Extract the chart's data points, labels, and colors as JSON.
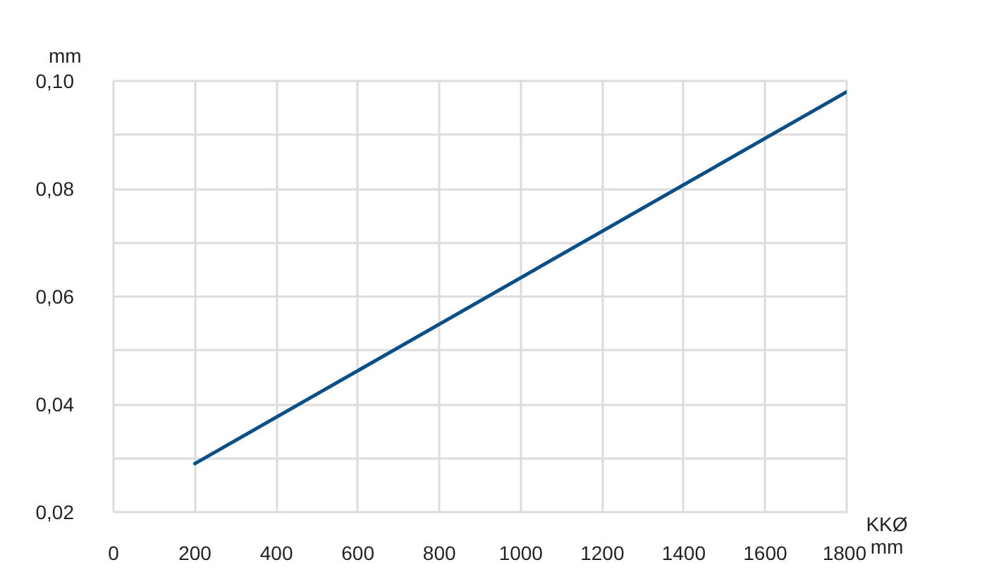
{
  "chart_data": {
    "type": "line",
    "xlabel": "KKØ\nmm",
    "ylabel": "mm",
    "x": [
      200,
      1800
    ],
    "series": [
      {
        "color": "#0b4f88",
        "values": [
          0.029,
          0.098
        ]
      }
    ],
    "xlim": [
      0,
      1800
    ],
    "ylim": [
      0.02,
      0.1
    ],
    "xticks": [
      0,
      200,
      400,
      600,
      800,
      1000,
      1200,
      1400,
      1600,
      1800
    ],
    "yticks": [
      {
        "value": 0.02,
        "label": "0,02"
      },
      {
        "value": 0.03,
        "label": null
      },
      {
        "value": 0.04,
        "label": "0,04"
      },
      {
        "value": 0.05,
        "label": null
      },
      {
        "value": 0.06,
        "label": "0,06"
      },
      {
        "value": 0.07,
        "label": null
      },
      {
        "value": 0.08,
        "label": "0,08"
      },
      {
        "value": 0.09,
        "label": null
      },
      {
        "value": 0.1,
        "label": "0,10"
      }
    ],
    "grid": true,
    "line_style": "solid"
  }
}
